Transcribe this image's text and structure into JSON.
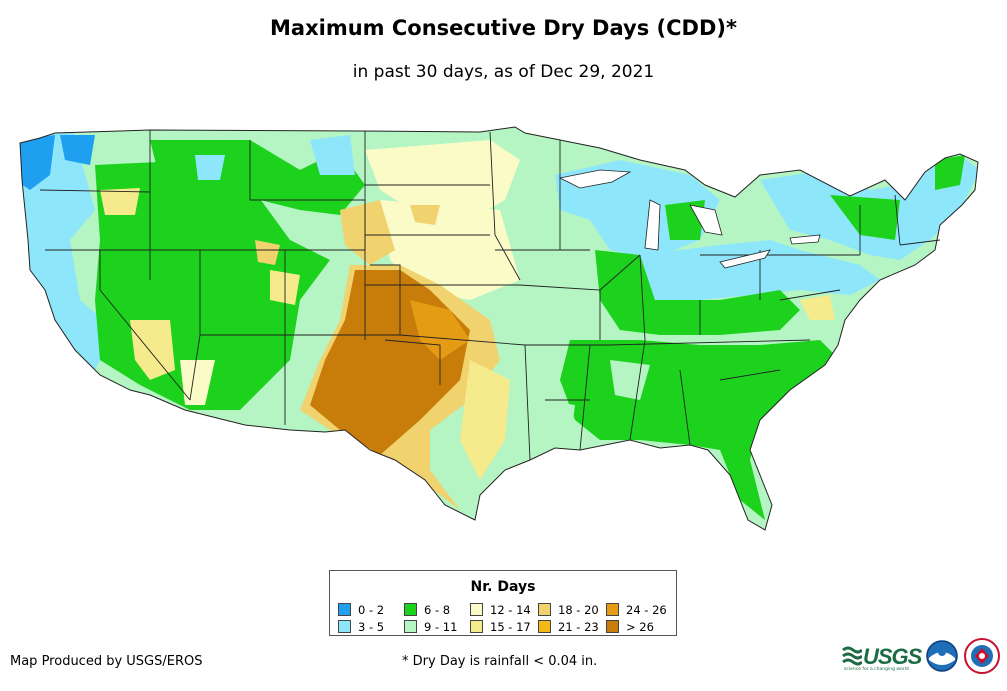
{
  "title": "Maximum Consecutive Dry Days (CDD)*",
  "subtitle": "in past 30 days, as of Dec 29, 2021",
  "legend": {
    "title": "Nr. Days",
    "items": [
      {
        "label": "0 - 2",
        "color": "#1f9ff0"
      },
      {
        "label": "3 - 5",
        "color": "#8ee6fb"
      },
      {
        "label": "6 - 8",
        "color": "#1cd21c"
      },
      {
        "label": "9 - 11",
        "color": "#b4f5c3"
      },
      {
        "label": "12 - 14",
        "color": "#fbfbc8"
      },
      {
        "label": "15 - 17",
        "color": "#f6eb8c"
      },
      {
        "label": "18 - 20",
        "color": "#f0d26e"
      },
      {
        "label": "21 - 23",
        "color": "#f5b916"
      },
      {
        "label": "24 - 26",
        "color": "#e69b14"
      },
      {
        "label": "> 26",
        "color": "#c87d0a"
      }
    ]
  },
  "footer": {
    "credit": "Map Produced by USGS/EROS",
    "footnote": "* Dry Day is rainfall < 0.04 in.",
    "logo_usgs": "USGS",
    "logo_usgs_tag": "science for a changing world"
  },
  "colors": {
    "state_border": "#222222",
    "background": "#ffffff"
  }
}
